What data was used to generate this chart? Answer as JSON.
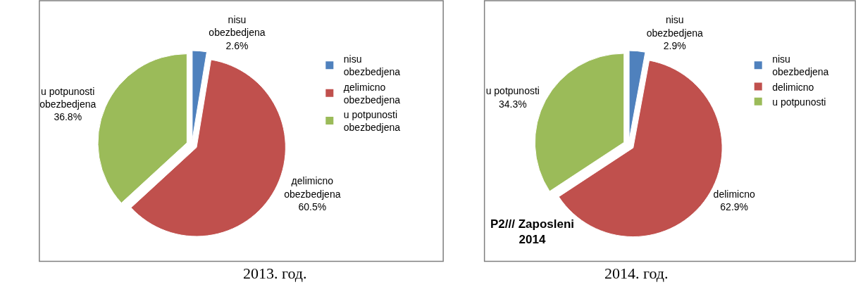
{
  "chart_data": [
    {
      "type": "pie",
      "categories": [
        "nisu obezbedjena",
        "дelimicno obezbedjena",
        "u potpunosti obezbedjena"
      ],
      "values": [
        2.6,
        60.5,
        36.8
      ],
      "value_labels": [
        "2.6%",
        "60.5%",
        "36.8%"
      ],
      "colors": [
        "#4f81bd",
        "#c0504d",
        "#9bbb59"
      ],
      "legend": "right",
      "annotations": [
        "2013. год."
      ]
    },
    {
      "type": "pie",
      "categories": [
        "nisu obezbedjena",
        "delimicno",
        "u potpunosti"
      ],
      "values": [
        2.9,
        62.9,
        34.3
      ],
      "value_labels": [
        "2.9%",
        "62.9%",
        "34.3%"
      ],
      "colors": [
        "#4f81bd",
        "#c0504d",
        "#9bbb59"
      ],
      "legend": "right",
      "annotations": [
        "P2/// Zaposleni 2014",
        "2014. год."
      ]
    }
  ]
}
